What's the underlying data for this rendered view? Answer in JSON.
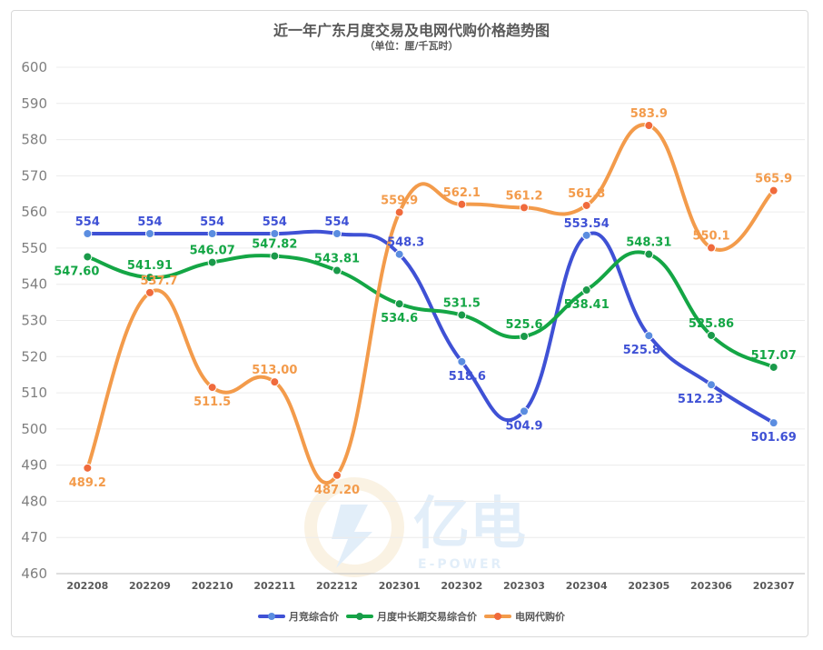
{
  "chart_data": {
    "type": "line",
    "title": "近一年广东月度交易及电网代购价格趋势图",
    "subtitle": "（单位：厘/千瓦时）",
    "categories": [
      "202208",
      "202209",
      "202210",
      "202211",
      "202212",
      "202301",
      "202302",
      "202303",
      "202304",
      "202305",
      "202306",
      "202307"
    ],
    "ylim": [
      460,
      600
    ],
    "yticks": [
      460,
      470,
      480,
      490,
      500,
      510,
      520,
      530,
      540,
      550,
      560,
      570,
      580,
      590,
      600
    ],
    "grid": true,
    "legend_position": "bottom",
    "series": [
      {
        "name": "月竞综合价",
        "color": "#3f51d5",
        "point_color": "#5b8de0",
        "values": [
          554,
          554,
          554,
          554,
          554,
          548.3,
          518.6,
          504.9,
          553.54,
          525.8,
          512.23,
          501.69
        ],
        "labels": [
          "554",
          "554",
          "554",
          "554",
          "554",
          "548.3",
          "518.6",
          "504.9",
          "553.54",
          "525.8",
          "512.23",
          "501.69"
        ]
      },
      {
        "name": "月度中长期交易综合价",
        "color": "#14a645",
        "point_color": "#1a9a4a",
        "values": [
          547.6,
          541.91,
          546.07,
          547.82,
          543.81,
          534.6,
          531.5,
          525.6,
          538.41,
          548.31,
          525.86,
          517.07
        ],
        "labels": [
          "547.60",
          "541.91",
          "546.07",
          "547.82",
          "543.81",
          "534.6",
          "531.5",
          "525.6",
          "538.41",
          "548.31",
          "525.86",
          "517.07"
        ]
      },
      {
        "name": "电网代购价",
        "color": "#f39b4b",
        "point_color": "#f06a3c",
        "values": [
          489.2,
          537.7,
          511.5,
          513.0,
          487.2,
          559.9,
          562.1,
          561.2,
          561.8,
          583.9,
          550.1,
          565.9
        ],
        "labels": [
          "489.2",
          "537.7",
          "511.5",
          "513.00",
          "487.20",
          "559.9",
          "562.1",
          "561.2",
          "561.8",
          "583.9",
          "550.1",
          "565.9"
        ]
      }
    ]
  },
  "watermark": {
    "text": "亿电",
    "subtext": "E-POWER"
  }
}
